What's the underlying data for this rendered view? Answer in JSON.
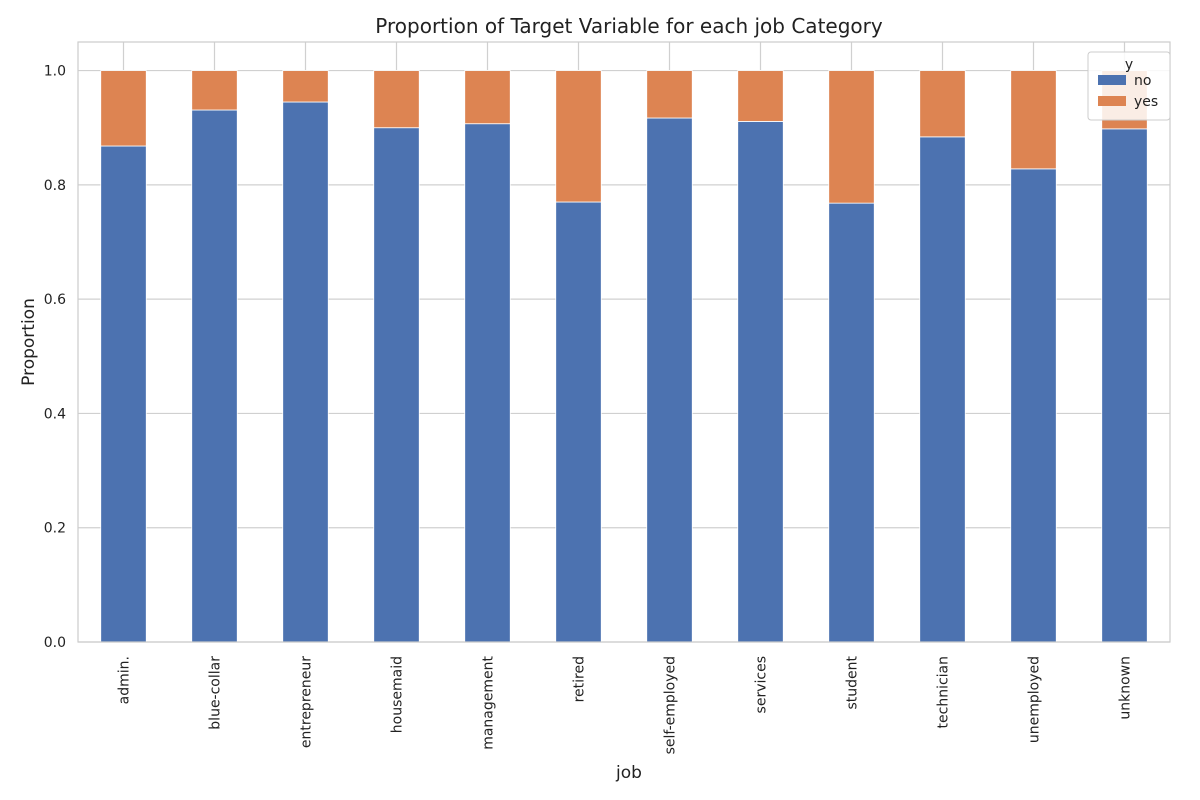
{
  "chart_data": {
    "type": "bar",
    "stacked": true,
    "title": "Proportion of Target Variable for each job Category",
    "xlabel": "job",
    "ylabel": "Proportion",
    "ylim": [
      0,
      1.05
    ],
    "yticks": [
      "0.0",
      "0.2",
      "0.4",
      "0.6",
      "0.8",
      "1.0"
    ],
    "ytick_values": [
      0,
      0.2,
      0.4,
      0.6,
      0.8,
      1.0
    ],
    "grid": true,
    "legend": {
      "title": "y",
      "placement": "top-right"
    },
    "categories": [
      "admin.",
      "blue-collar",
      "entrepreneur",
      "housemaid",
      "management",
      "retired",
      "self-employed",
      "services",
      "student",
      "technician",
      "unemployed",
      "unknown"
    ],
    "series": [
      {
        "name": "no",
        "color": "#4c72b0",
        "values": [
          0.868,
          0.931,
          0.945,
          0.9,
          0.907,
          0.77,
          0.917,
          0.911,
          0.768,
          0.884,
          0.828,
          0.898
        ]
      },
      {
        "name": "yes",
        "color": "#dd8452",
        "values": [
          0.132,
          0.069,
          0.055,
          0.1,
          0.093,
          0.23,
          0.083,
          0.089,
          0.232,
          0.116,
          0.172,
          0.102
        ]
      }
    ]
  }
}
